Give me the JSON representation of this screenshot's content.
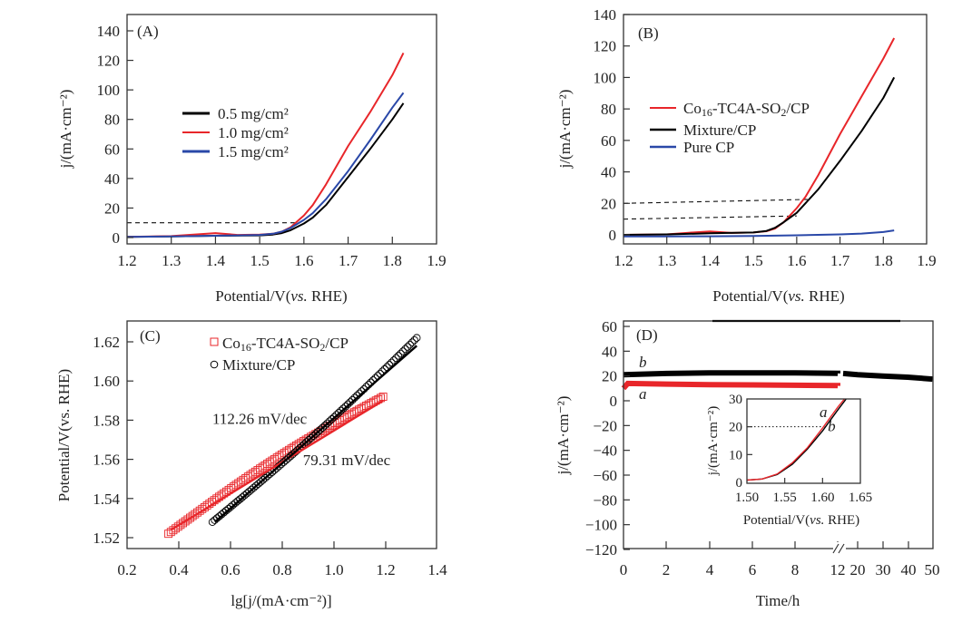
{
  "chart_data": [
    {
      "id": "A",
      "type": "line",
      "panel_label": "(A)",
      "xlabel": "Potential/V(vs. RHE)",
      "xlabel_parts": [
        "Potential/V(",
        "vs.",
        " RHE)"
      ],
      "ylabel": "j/(mA·cm⁻²)",
      "xlim": [
        1.2,
        1.9
      ],
      "ylim": [
        -3,
        144
      ],
      "xticks": [
        1.2,
        1.3,
        1.4,
        1.5,
        1.6,
        1.7,
        1.8,
        1.9
      ],
      "xtick_labels": [
        "1.2",
        "1.3",
        "1.4",
        "1.5",
        "1.6",
        "1.7",
        "1.8",
        "1.9"
      ],
      "yticks": [
        0,
        20,
        40,
        60,
        80,
        100,
        120,
        140
      ],
      "ytick_labels": [
        "0",
        "20",
        "40",
        "60",
        "80",
        "100",
        "120",
        "140"
      ],
      "legend_position": "center-left",
      "reference_lines": [
        {
          "y": 10,
          "x_end": 1.58,
          "style": "dashed"
        }
      ],
      "series": [
        {
          "name": "0.5 mg/cm²",
          "color": "#000000",
          "x": [
            1.2,
            1.3,
            1.4,
            1.5,
            1.53,
            1.55,
            1.57,
            1.6,
            1.62,
            1.65,
            1.7,
            1.75,
            1.8,
            1.825
          ],
          "y": [
            0.5,
            0.8,
            1.2,
            1.5,
            2,
            3,
            5,
            9.5,
            13.5,
            22,
            41,
            60,
            80,
            91
          ]
        },
        {
          "name": "1.0 mg/cm²",
          "color": "#e8262a",
          "x": [
            1.2,
            1.3,
            1.35,
            1.4,
            1.45,
            1.5,
            1.53,
            1.55,
            1.57,
            1.6,
            1.62,
            1.65,
            1.7,
            1.75,
            1.8,
            1.825
          ],
          "y": [
            0.5,
            1,
            2,
            3,
            1.8,
            2,
            2.6,
            4,
            7,
            15,
            22,
            36,
            62,
            85,
            110,
            125
          ]
        },
        {
          "name": "1.5 mg/cm²",
          "color": "#2a48a8",
          "x": [
            1.2,
            1.3,
            1.4,
            1.5,
            1.53,
            1.55,
            1.57,
            1.6,
            1.62,
            1.65,
            1.7,
            1.75,
            1.8,
            1.825
          ],
          "y": [
            0.5,
            0.8,
            1.2,
            1.8,
            2.6,
            4,
            6.5,
            12,
            16.5,
            26,
            45,
            66,
            88,
            98
          ]
        }
      ]
    },
    {
      "id": "B",
      "type": "line",
      "panel_label": "(B)",
      "xlabel": "Potential/V(vs. RHE)",
      "xlabel_parts": [
        "Potential/V(",
        "vs.",
        " RHE)"
      ],
      "ylabel": "j/(mA·cm⁻²)",
      "xlim": [
        1.2,
        1.9
      ],
      "ylim": [
        -6,
        140
      ],
      "xticks": [
        1.2,
        1.3,
        1.4,
        1.5,
        1.6,
        1.7,
        1.8,
        1.9
      ],
      "xtick_labels": [
        "1.2",
        "1.3",
        "1.4",
        "1.5",
        "1.6",
        "1.7",
        "1.8",
        "1.9"
      ],
      "yticks": [
        0,
        20,
        40,
        60,
        80,
        100,
        120,
        140
      ],
      "ytick_labels": [
        "0",
        "20",
        "40",
        "60",
        "80",
        "100",
        "120",
        "140"
      ],
      "legend_position": "center-left",
      "reference_lines": [
        {
          "y_start": 20,
          "y_end": 22.5,
          "x_end": 1.625,
          "style": "dashed"
        },
        {
          "y_start": 10,
          "y_end": 12,
          "x_end": 1.6,
          "style": "dashed"
        }
      ],
      "series": [
        {
          "name": "Co16-TC4A-SO2/CP",
          "name_parts": [
            "Co",
            "16",
            "-TC4A-SO",
            "2",
            "/CP"
          ],
          "color": "#e8262a",
          "x": [
            1.2,
            1.3,
            1.35,
            1.4,
            1.45,
            1.5,
            1.53,
            1.55,
            1.57,
            1.6,
            1.62,
            1.65,
            1.7,
            1.75,
            1.8,
            1.825
          ],
          "y": [
            0,
            0.3,
            1.3,
            2.2,
            1.2,
            1.5,
            2.3,
            4,
            8,
            17,
            24,
            38,
            64,
            88,
            112,
            125
          ]
        },
        {
          "name": "Mixture/CP",
          "color": "#000000",
          "x": [
            1.2,
            1.3,
            1.4,
            1.5,
            1.53,
            1.55,
            1.57,
            1.6,
            1.62,
            1.65,
            1.7,
            1.75,
            1.8,
            1.825
          ],
          "y": [
            0,
            0.3,
            1,
            1.5,
            2.5,
            4.5,
            8,
            14,
            20,
            29,
            47,
            66,
            87,
            100
          ]
        },
        {
          "name": "Pure CP",
          "color": "#2a48a8",
          "x": [
            1.2,
            1.3,
            1.4,
            1.5,
            1.6,
            1.7,
            1.75,
            1.8,
            1.825
          ],
          "y": [
            -1,
            -1,
            -0.9,
            -0.7,
            -0.3,
            0.3,
            0.8,
            1.8,
            2.8
          ]
        }
      ]
    },
    {
      "id": "C",
      "type": "scatter",
      "panel_label": "(C)",
      "xlabel": "lg[j/(mA·cm⁻²)]",
      "ylabel": "Potential/V(vs. RHE)",
      "xlim": [
        0.2,
        1.4
      ],
      "ylim": [
        1.5145,
        1.6306
      ],
      "xticks": [
        0.2,
        0.4,
        0.6,
        0.8,
        1.0,
        1.2,
        1.4
      ],
      "xtick_labels": [
        "0.2",
        "0.4",
        "0.6",
        "0.8",
        "1.0",
        "1.2",
        "1.4"
      ],
      "yticks": [
        1.52,
        1.54,
        1.56,
        1.58,
        1.6,
        1.62
      ],
      "ytick_labels": [
        "1.52",
        "1.54",
        "1.56",
        "1.58",
        "1.60",
        "1.62"
      ],
      "legend_position": "top-center",
      "annotations": [
        {
          "text": "112.26 mV/dec",
          "x": 0.53,
          "y": 1.578
        },
        {
          "text": "79.31 mV/dec",
          "x": 0.88,
          "y": 1.557
        }
      ],
      "series": [
        {
          "name": "Co16-TC4A-SO2/CP",
          "name_parts": [
            "Co",
            "16",
            "-TC4A-SO",
            "2",
            "/CP"
          ],
          "color": "#e8262a",
          "marker": "square",
          "x_range": [
            0.36,
            1.19
          ],
          "y_range": [
            1.522,
            1.592
          ],
          "wobble": 0.0035,
          "fit": {
            "x": [
              0.37,
              1.19
            ],
            "y": [
              1.524,
              1.59
            ],
            "slope_label": "79.31 mV/dec"
          }
        },
        {
          "name": "Mixture/CP",
          "color": "#000000",
          "marker": "circle",
          "x_range": [
            0.53,
            1.32
          ],
          "y_range": [
            1.528,
            1.622
          ],
          "wobble": -0.0025,
          "fit": {
            "x": [
              0.54,
              1.32
            ],
            "y": [
              1.528,
              1.618
            ],
            "slope_label": "112.26 mV/dec"
          }
        }
      ]
    },
    {
      "id": "D",
      "type": "line",
      "panel_label": "(D)",
      "xlabel": "Time/h",
      "ylabel": "j/(mA·cm⁻²)",
      "ylim": [
        -120,
        65
      ],
      "yticks": [
        60,
        40,
        20,
        0,
        -20,
        -40,
        -60,
        -80,
        -100,
        -120
      ],
      "ytick_labels": [
        "60",
        "40",
        "20",
        "0",
        "−20",
        "−40",
        "−60",
        "−80",
        "−100",
        "−120"
      ],
      "xtick_labels": [
        "0",
        "2",
        "4",
        "6",
        "8",
        "12",
        "20",
        "30",
        "40",
        "50"
      ],
      "x_axis_break": "between 12 and 20",
      "series": [
        {
          "name": "b",
          "label": "b",
          "color": "#000000",
          "segments": [
            {
              "x": [
                0,
                2,
                4,
                6,
                8,
                10,
                12.3
              ],
              "y": [
                21,
                22,
                22.5,
                22.5,
                22.5,
                22.2,
                22
              ]
            },
            {
              "x": [
                13,
                20,
                30,
                40,
                50
              ],
              "y": [
                22,
                21,
                20,
                19,
                17.5
              ]
            }
          ]
        },
        {
          "name": "a",
          "label": "a",
          "color": "#e8262a",
          "segments": [
            {
              "x": [
                0,
                0.2,
                2,
                4,
                6,
                8,
                10,
                12.3
              ],
              "y": [
                10,
                14,
                13.5,
                13,
                12.8,
                12.5,
                12.3,
                12
              ]
            }
          ]
        }
      ],
      "inset": {
        "type": "line",
        "xlabel": "Potential/V(vs. RHE)",
        "ylabel": "j/(mA·cm⁻²)",
        "xlim": [
          1.5,
          1.65
        ],
        "ylim": [
          0,
          30
        ],
        "xticks": [
          1.5,
          1.55,
          1.6,
          1.65
        ],
        "xtick_labels": [
          "1.50",
          "1.55",
          "1.60",
          "1.65"
        ],
        "yticks": [
          0,
          10,
          20,
          30
        ],
        "ytick_labels": [
          "0",
          "10",
          "20",
          "30"
        ],
        "reference_lines": [
          {
            "y": 20,
            "x_end": 1.603,
            "style": "dotted"
          }
        ],
        "labels": [
          {
            "text": "a",
            "x": 1.596,
            "y": 23.5
          },
          {
            "text": "b",
            "x": 1.607,
            "y": 18.5
          }
        ],
        "series": [
          {
            "name": "a",
            "color": "#e8262a",
            "x": [
              1.5,
              1.52,
              1.54,
              1.56,
              1.58,
              1.6,
              1.62,
              1.632
            ],
            "y": [
              0.8,
              1.2,
              3,
              7,
              12.5,
              19.5,
              27,
              31
            ]
          },
          {
            "name": "b",
            "color": "#000000",
            "x": [
              1.5,
              1.52,
              1.54,
              1.56,
              1.58,
              1.6,
              1.62,
              1.634
            ],
            "y": [
              0.8,
              1.2,
              2.8,
              6.5,
              12,
              18.5,
              26,
              31
            ]
          }
        ]
      }
    }
  ]
}
